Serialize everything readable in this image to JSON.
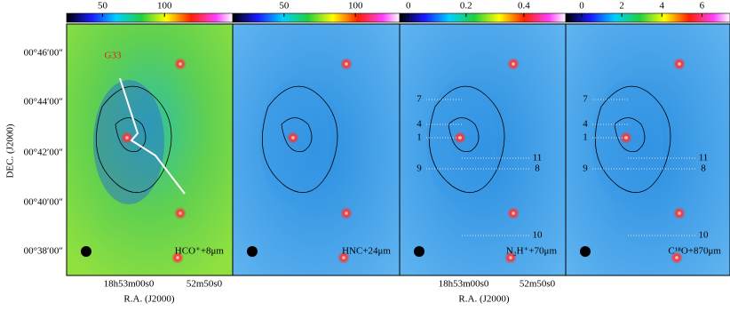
{
  "panels": [
    {
      "colorbar": {
        "lim": [
          21,
          155
        ],
        "ticks": [
          50,
          100
        ]
      },
      "label": "HCO⁺+8μm",
      "sources": []
    },
    {
      "colorbar": {
        "lim": [
          14,
          131
        ],
        "ticks": [
          50,
          100
        ]
      },
      "label": "HNC+24μm",
      "sources": []
    },
    {
      "colorbar": {
        "lim": [
          -0.03,
          0.545
        ],
        "ticks": [
          0,
          0.2,
          0.4
        ]
      },
      "label": "N₂H⁺+70μm",
      "sources": [
        "7",
        "4",
        "1",
        "9",
        "11",
        "8",
        "10"
      ]
    },
    {
      "colorbar": {
        "lim": [
          -0.8,
          7.4
        ],
        "ticks": [
          0,
          2,
          4,
          6
        ]
      },
      "label": "C¹⁸O+870μm",
      "sources": [
        "7",
        "4",
        "1",
        "9",
        "11",
        "8",
        "10"
      ]
    }
  ],
  "region": "G33",
  "y_axis": {
    "label": "DEC. (J2000)",
    "ticks": [
      "00°46′00″",
      "00°44′00″",
      "00°42′00″",
      "00°40′00″",
      "00°38′00″"
    ]
  },
  "x_axis": {
    "label": "R.A. (J2000)",
    "ticks": [
      "18h53m00s0",
      "52m50s0"
    ]
  }
}
